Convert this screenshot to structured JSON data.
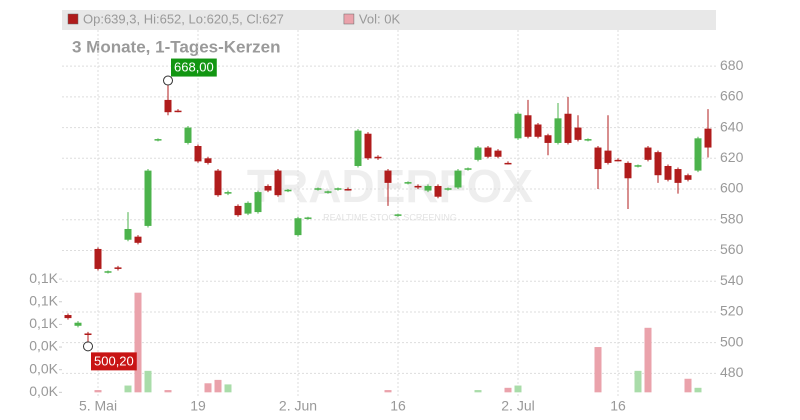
{
  "chart_data": {
    "type": "candlestick",
    "title": "3 Monate, 1-Tages-Kerzen",
    "legend": [
      {
        "label": "Op:639,3, Hi:652, Lo:620,5, Cl:627",
        "color": "#b01c1c"
      },
      {
        "label": "Vol: 0K",
        "color": "#eaa2ab"
      }
    ],
    "watermark": "TRADERFOX",
    "watermark_tagline": "REALTIME STOCK SCREENING",
    "up_color": "#4cb34c",
    "down_color": "#b01c1c",
    "volume_up_color": "#a9dca9",
    "volume_down_color": "#eaa2ab",
    "categories": [
      null,
      null,
      null,
      "5. Mai",
      null,
      null,
      null,
      null,
      null,
      null,
      null,
      null,
      null,
      "19",
      null,
      null,
      null,
      null,
      null,
      null,
      null,
      null,
      null,
      "2. Jun",
      null,
      null,
      null,
      null,
      null,
      null,
      null,
      null,
      null,
      "16",
      null,
      null,
      null,
      null,
      null,
      null,
      null,
      null,
      null,
      null,
      null,
      "2. Jul",
      null,
      null,
      null,
      null,
      null,
      null,
      null,
      null,
      null,
      "16",
      null,
      null,
      null,
      null,
      null,
      null,
      null,
      null,
      null
    ],
    "open": [
      518,
      511,
      506,
      561,
      546,
      549,
      567,
      569,
      576,
      632,
      658,
      651,
      630,
      628,
      620,
      612,
      597,
      589,
      584,
      585,
      602,
      612,
      599,
      570,
      581,
      600,
      598,
      600,
      600,
      615,
      636,
      621,
      612,
      583,
      604,
      602,
      599,
      602,
      600,
      601,
      613,
      619,
      627,
      625,
      617,
      633,
      648,
      642,
      635,
      630,
      649,
      640,
      632,
      627,
      625,
      619,
      617,
      615,
      627,
      624,
      615,
      613,
      609,
      612,
      639.3
    ],
    "high": [
      519,
      514,
      507,
      562,
      547,
      550,
      585,
      570,
      613,
      633,
      668,
      652,
      641,
      629,
      621,
      613,
      599,
      590,
      592,
      599,
      603,
      613,
      600,
      582,
      582,
      601,
      599,
      601,
      601,
      639,
      637,
      622,
      613,
      584,
      605,
      603,
      603,
      603,
      601,
      613,
      614,
      628,
      628,
      626,
      618,
      650,
      658,
      643,
      636,
      656,
      660,
      648,
      633,
      628,
      648,
      620,
      618,
      616,
      628,
      625,
      616,
      614,
      610,
      634,
      652
    ],
    "low": [
      515,
      510,
      500.2,
      547,
      545,
      547,
      566,
      564,
      575,
      631,
      648,
      650,
      629,
      617,
      616,
      595,
      596,
      582,
      583,
      584,
      598,
      595,
      598,
      569,
      580,
      599,
      597,
      599,
      599,
      614,
      619,
      619,
      589,
      582,
      603,
      600,
      598,
      594,
      599,
      600,
      612,
      618,
      620,
      620,
      616,
      632,
      633,
      633,
      622,
      629,
      629,
      631,
      631,
      600,
      616,
      618,
      587,
      614,
      618,
      604,
      605,
      597,
      605,
      611,
      620.5
    ],
    "close": [
      516,
      513,
      505,
      548,
      546.5,
      548,
      574,
      565,
      612,
      632.5,
      650,
      650.5,
      640,
      618,
      617,
      596,
      598,
      583,
      591,
      598,
      599,
      596,
      599.5,
      581,
      581.5,
      600.5,
      598.5,
      600.5,
      599.5,
      638,
      620,
      620,
      604,
      583.5,
      604.5,
      601.5,
      602,
      595,
      600.5,
      612,
      613.5,
      627,
      621,
      621,
      616.5,
      649,
      634,
      634,
      630,
      646,
      630,
      632,
      632.5,
      613,
      617,
      618.5,
      607,
      615.5,
      619,
      609,
      606,
      604,
      606,
      633,
      627
    ],
    "volume": [
      0,
      0,
      0,
      2,
      0,
      0,
      6,
      88,
      19,
      0,
      2,
      0,
      0,
      0,
      8,
      11,
      7,
      0,
      0,
      0,
      0,
      0,
      0,
      0,
      0,
      0,
      0,
      0,
      0,
      0,
      0,
      0,
      2,
      0,
      0,
      0,
      0,
      0,
      0,
      0,
      0,
      2,
      0,
      0,
      4,
      6,
      0,
      0,
      0,
      0,
      0,
      0,
      0,
      40,
      0,
      0,
      0,
      19,
      57,
      0,
      0,
      0,
      12,
      4,
      0
    ],
    "annotations": [
      {
        "label": "668,00",
        "value": 668
      },
      {
        "label": "500,20",
        "value": 500.2
      }
    ],
    "ylim": [
      464,
      703.5
    ],
    "yticks": [
      480,
      500,
      520,
      540,
      560,
      580,
      600,
      620,
      640,
      660,
      680
    ],
    "y2lim": [
      -5,
      320
    ],
    "y2ticks": [
      {
        "value": 0,
        "label": "0,0K"
      },
      {
        "value": 20,
        "label": "0,0K"
      },
      {
        "value": 40,
        "label": "0,0K"
      },
      {
        "value": 60,
        "label": "0,1K"
      },
      {
        "value": 80,
        "label": "0,1K"
      },
      {
        "value": 100,
        "label": "0,1K"
      }
    ],
    "grid": true
  }
}
